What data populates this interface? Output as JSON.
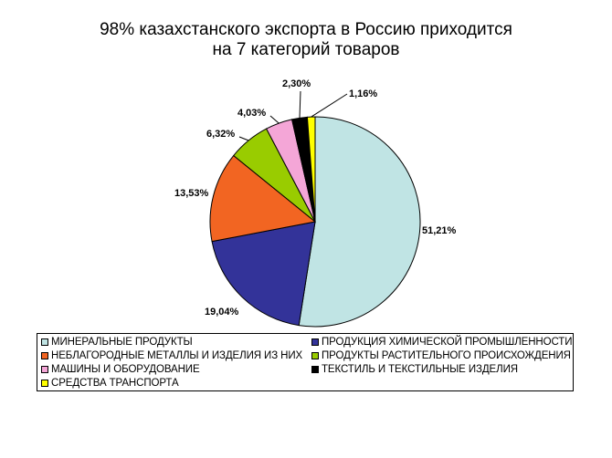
{
  "title_line1": "98% казахстанского экспорта в Россию приходится",
  "title_line2": "на 7 категорий товаров",
  "chart_data": {
    "type": "pie",
    "title": "98% казахстанского экспорта в Россию приходится на 7 категорий товаров",
    "legend_position": "bottom",
    "slices": [
      {
        "name": "МИНЕРАЛЬНЫЕ ПРОДУКТЫ",
        "value": 51.21,
        "label": "51,21%",
        "color": "#c0e4e4"
      },
      {
        "name": "ПРОДУКЦИЯ ХИМИЧЕСКОЙ ПРОМЫШЛЕННОСТИ",
        "value": 19.04,
        "label": "19,04%",
        "color": "#333399"
      },
      {
        "name": "НЕБЛАГОРОДНЫЕ МЕТАЛЛЫ И ИЗДЕЛИЯ ИЗ НИХ",
        "value": 13.53,
        "label": "13,53%",
        "color": "#f26522"
      },
      {
        "name": "ПРОДУКТЫ РАСТИТЕЛЬНОГО ПРОИСХОЖДЕНИЯ",
        "value": 6.32,
        "label": "6,32%",
        "color": "#99cc00"
      },
      {
        "name": "МАШИНЫ И ОБОРУДОВАНИЕ",
        "value": 4.03,
        "label": "4,03%",
        "color": "#f4a6d7"
      },
      {
        "name": "ТЕКСТИЛЬ И ТЕКСТИЛЬНЫЕ ИЗДЕЛИЯ",
        "value": 2.3,
        "label": "2,30%",
        "color": "#000000"
      },
      {
        "name": "СРЕДСТВА ТРАНСПОРТА",
        "value": 1.16,
        "label": "1,16%",
        "color": "#ffff00"
      }
    ]
  }
}
